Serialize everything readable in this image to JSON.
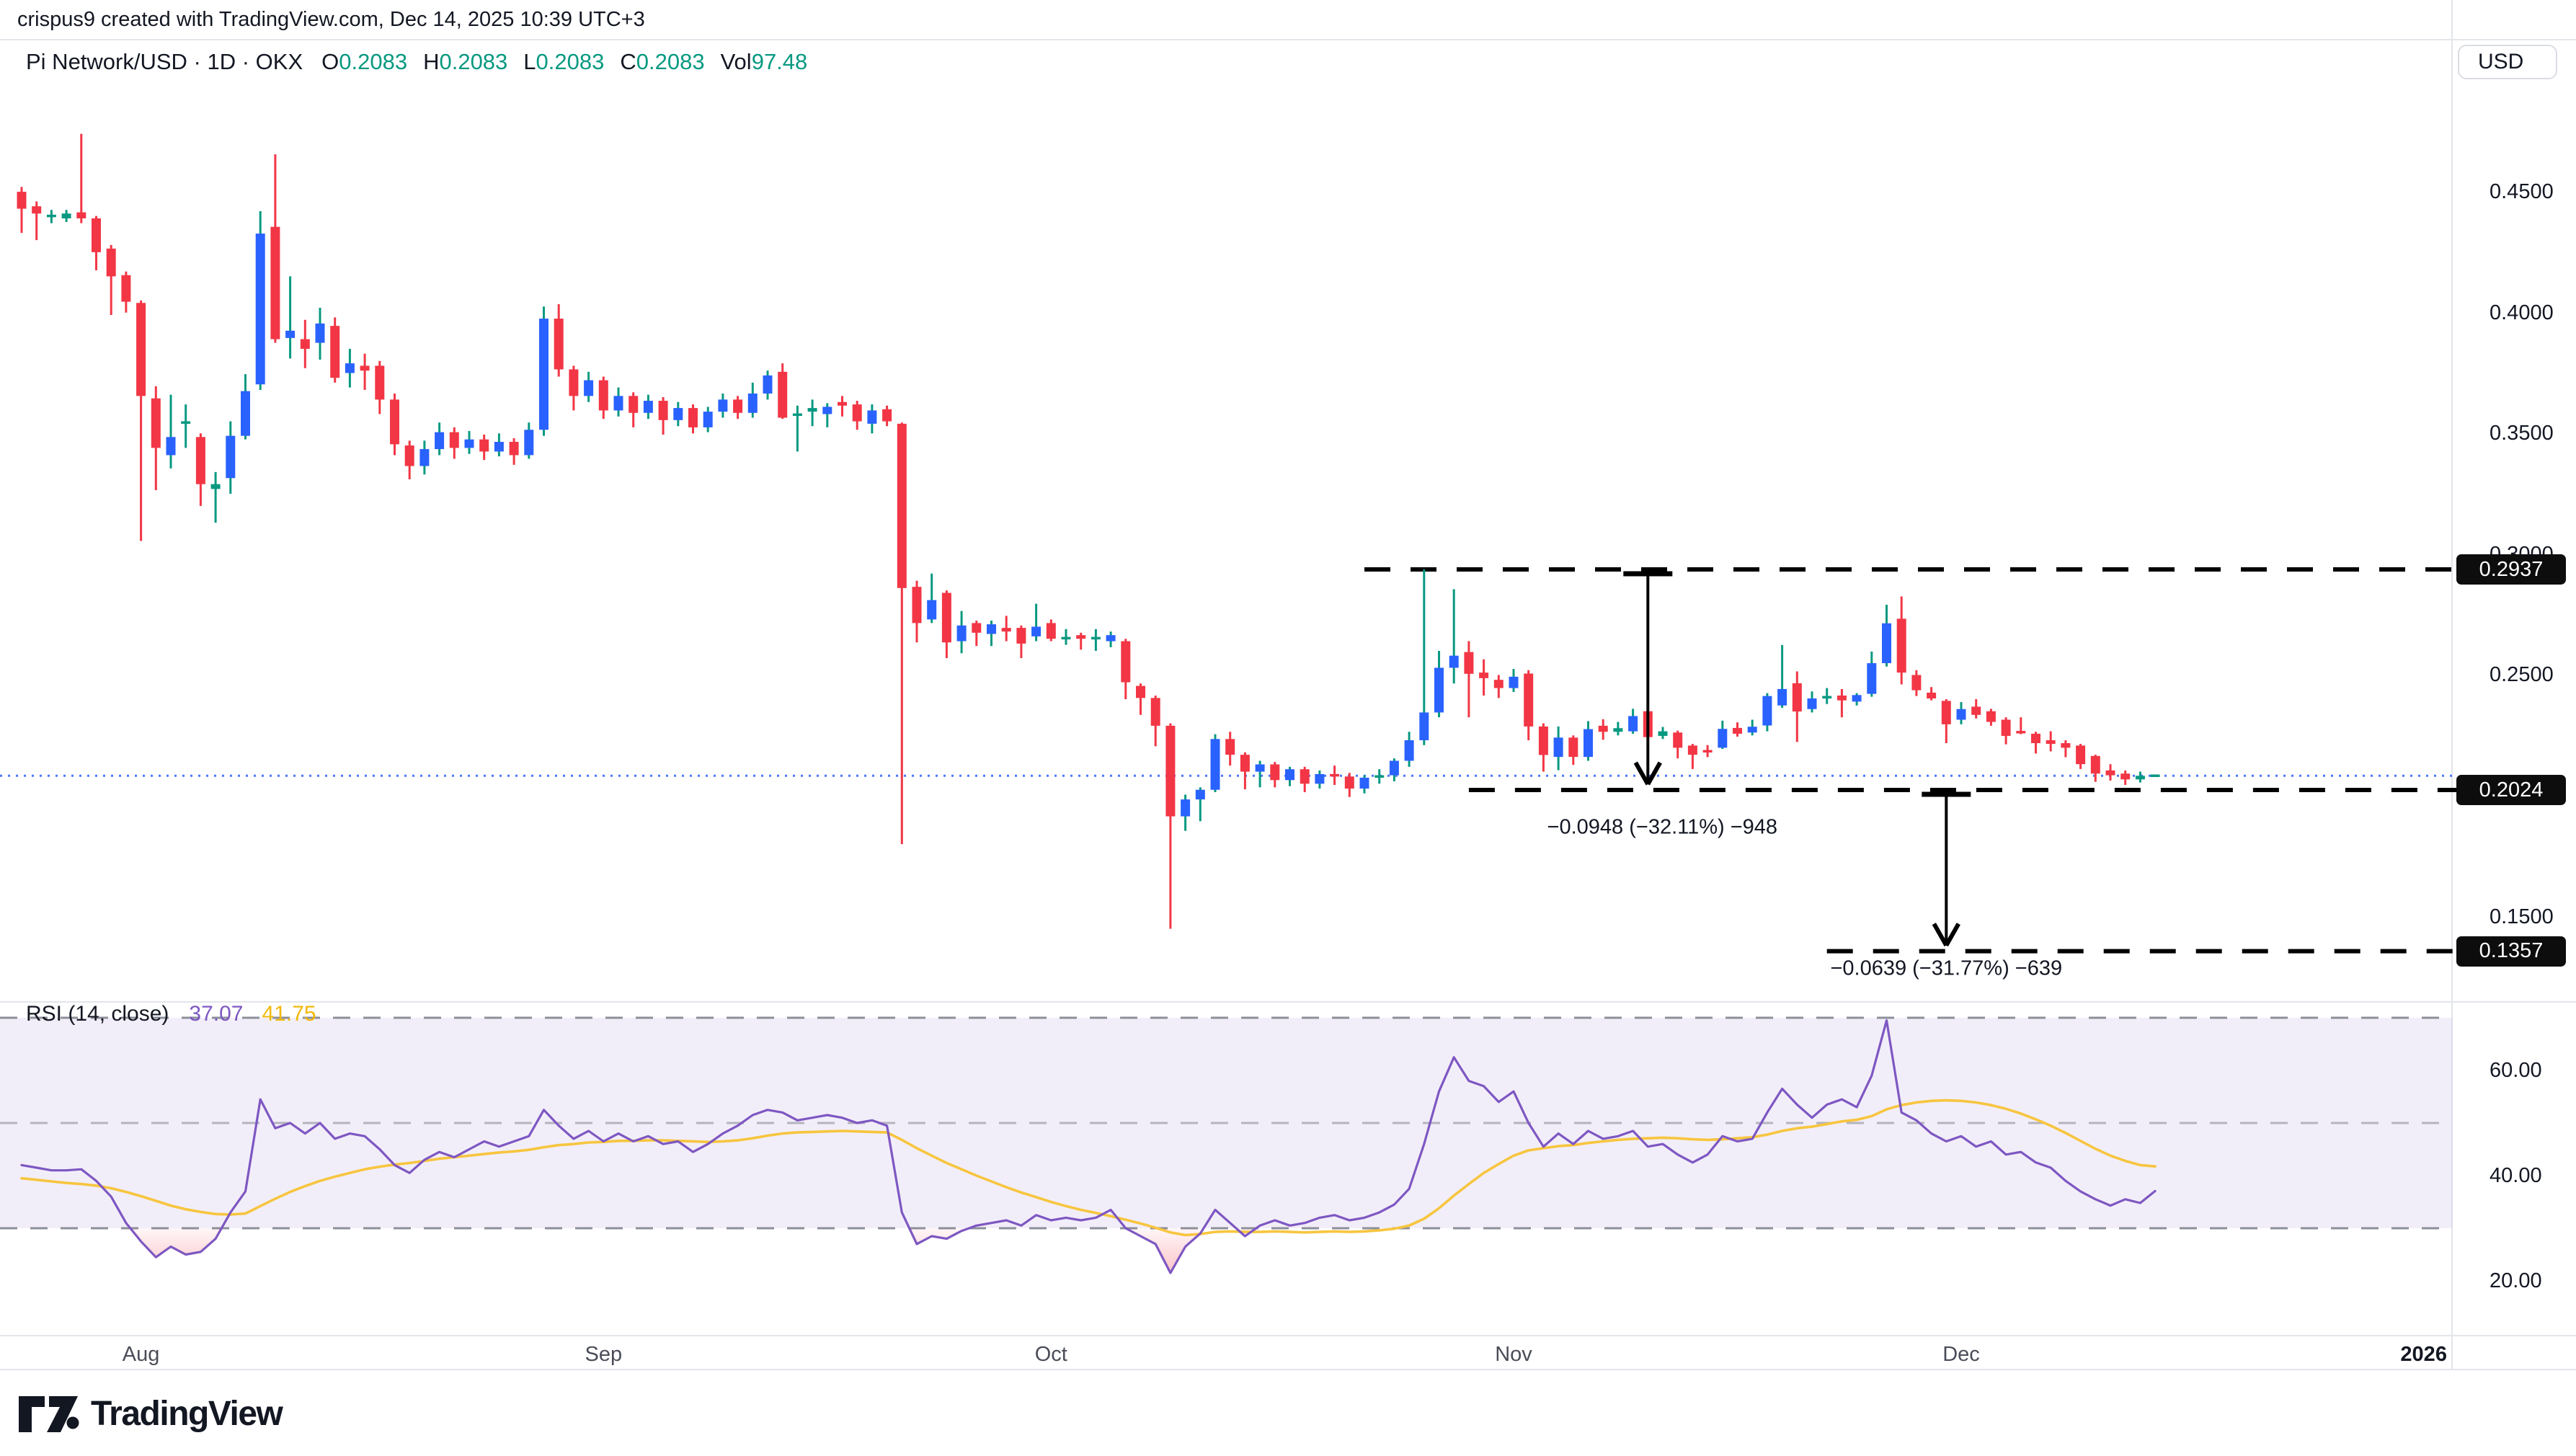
{
  "header": {
    "credit": "crispus9 created with TradingView.com, Dec 14, 2025 10:39 UTC+3"
  },
  "legend": {
    "symbol": "Pi Network/USD · 1D · OKX",
    "items": [
      {
        "label": "O",
        "value": "0.2083"
      },
      {
        "label": "H",
        "value": "0.2083"
      },
      {
        "label": "L",
        "value": "0.2083"
      },
      {
        "label": "C",
        "value": "0.2083"
      },
      {
        "label": "Vol",
        "value": "97.48"
      }
    ]
  },
  "price_axis": {
    "currency_button": "USD",
    "ticks": [
      {
        "text": "0.4500",
        "value": 0.45
      },
      {
        "text": "0.4000",
        "value": 0.4
      },
      {
        "text": "0.3500",
        "value": 0.35
      },
      {
        "text": "0.3000",
        "value": 0.3
      },
      {
        "text": "0.2500",
        "value": 0.25
      },
      {
        "text": "0.2000",
        "value": 0.2
      },
      {
        "text": "0.1500",
        "value": 0.15
      }
    ],
    "chips": [
      {
        "text": "0.2937",
        "value": 0.2937
      },
      {
        "text": "0.2024",
        "value": 0.2024
      },
      {
        "text": "0.1357",
        "value": 0.1357
      }
    ]
  },
  "rsi_axis": {
    "ticks": [
      {
        "text": "60.00",
        "value": 60
      },
      {
        "text": "40.00",
        "value": 40
      },
      {
        "text": "20.00",
        "value": 20
      }
    ]
  },
  "time_axis": {
    "ticks": [
      {
        "label": "Aug",
        "index": 8,
        "bold": false
      },
      {
        "label": "Sep",
        "index": 39,
        "bold": false
      },
      {
        "label": "Oct",
        "index": 69,
        "bold": false
      },
      {
        "label": "Nov",
        "index": 100,
        "bold": false
      },
      {
        "label": "Dec",
        "index": 130,
        "bold": false
      },
      {
        "label": "2026",
        "index": 161,
        "bold": true
      }
    ]
  },
  "rsi_legend": {
    "title": "RSI (14, close)",
    "rsi_value": "37.07",
    "ma_value": "41.75"
  },
  "annotations": {
    "measure1": "−0.0948 (−32.11%) −948",
    "measure2": "−0.0639 (−31.77%) −639"
  },
  "footer": {
    "brand": "TradingView"
  },
  "colors": {
    "up_body": "#2962FF",
    "up_wick": "#089981",
    "down": "#F23645",
    "rsi_line": "#7E57C2",
    "rsi_ma_line": "#F7C53F",
    "rsi_band": "rgba(126,87,194,0.10)",
    "level_dash": "#000000",
    "close_dotted": "#2962FF",
    "separator": "#e3e5ea",
    "teal_value": "#089981",
    "oversold_fill": "#F23645"
  },
  "chart_data": {
    "type": "candlestick",
    "symbol": "Pi Network/USD",
    "interval": "1D",
    "exchange": "OKX",
    "title": "Pi Network/USD · 1D · OKX",
    "legend_last": {
      "o": 0.2083,
      "h": 0.2083,
      "l": 0.2083,
      "c": 0.2083,
      "vol": 97.48
    },
    "price_ylim": [
      0.135,
      0.49
    ],
    "grid": false,
    "candles": [
      [
        0.45,
        0.452,
        0.433,
        0.443
      ],
      [
        0.444,
        0.446,
        0.43,
        0.441
      ],
      [
        0.4395,
        0.4425,
        0.437,
        0.4405
      ],
      [
        0.439,
        0.4425,
        0.4375,
        0.441
      ],
      [
        0.4415,
        0.474,
        0.437,
        0.439
      ],
      [
        0.439,
        0.44,
        0.4175,
        0.425
      ],
      [
        0.4265,
        0.428,
        0.399,
        0.415
      ],
      [
        0.4155,
        0.417,
        0.4,
        0.4045
      ],
      [
        0.404,
        0.405,
        0.3055,
        0.3655
      ],
      [
        0.3645,
        0.3695,
        0.3265,
        0.344
      ],
      [
        0.341,
        0.366,
        0.3355,
        0.3485
      ],
      [
        0.354,
        0.362,
        0.344,
        0.355
      ],
      [
        0.3485,
        0.35,
        0.32,
        0.329
      ],
      [
        0.327,
        0.334,
        0.313,
        0.329
      ],
      [
        0.3315,
        0.355,
        0.325,
        0.349
      ],
      [
        0.349,
        0.3745,
        0.3475,
        0.3675
      ],
      [
        0.3703,
        0.442,
        0.368,
        0.4327
      ],
      [
        0.4355,
        0.4655,
        0.3875,
        0.389
      ],
      [
        0.3895,
        0.415,
        0.381,
        0.3925
      ],
      [
        0.389,
        0.397,
        0.377,
        0.385
      ],
      [
        0.3875,
        0.402,
        0.3805,
        0.3955
      ],
      [
        0.3945,
        0.398,
        0.371,
        0.373
      ],
      [
        0.375,
        0.385,
        0.369,
        0.379
      ],
      [
        0.378,
        0.383,
        0.368,
        0.376
      ],
      [
        0.378,
        0.38,
        0.358,
        0.364
      ],
      [
        0.364,
        0.3665,
        0.341,
        0.3455
      ],
      [
        0.345,
        0.347,
        0.331,
        0.3365
      ],
      [
        0.3365,
        0.347,
        0.333,
        0.3435
      ],
      [
        0.3435,
        0.3545,
        0.341,
        0.3505
      ],
      [
        0.3505,
        0.3525,
        0.3395,
        0.344
      ],
      [
        0.344,
        0.351,
        0.3415,
        0.3475
      ],
      [
        0.3475,
        0.3495,
        0.339,
        0.3425
      ],
      [
        0.3425,
        0.35,
        0.3405,
        0.3465
      ],
      [
        0.3465,
        0.348,
        0.337,
        0.341
      ],
      [
        0.341,
        0.3545,
        0.3395,
        0.3515
      ],
      [
        0.3515,
        0.4025,
        0.349,
        0.3975
      ],
      [
        0.3975,
        0.4035,
        0.3735,
        0.3765
      ],
      [
        0.3765,
        0.378,
        0.3595,
        0.3655
      ],
      [
        0.3655,
        0.3755,
        0.363,
        0.372
      ],
      [
        0.372,
        0.3735,
        0.356,
        0.3595
      ],
      [
        0.3595,
        0.369,
        0.357,
        0.3655
      ],
      [
        0.3655,
        0.367,
        0.3525,
        0.3585
      ],
      [
        0.3585,
        0.366,
        0.356,
        0.3635
      ],
      [
        0.3635,
        0.365,
        0.3495,
        0.3555
      ],
      [
        0.3555,
        0.363,
        0.353,
        0.3605
      ],
      [
        0.3605,
        0.362,
        0.35,
        0.3525
      ],
      [
        0.3525,
        0.361,
        0.3505,
        0.359
      ],
      [
        0.359,
        0.3665,
        0.3565,
        0.364
      ],
      [
        0.364,
        0.3655,
        0.356,
        0.3585
      ],
      [
        0.3585,
        0.371,
        0.3565,
        0.3665
      ],
      [
        0.3665,
        0.376,
        0.364,
        0.374
      ],
      [
        0.3755,
        0.379,
        0.356,
        0.3565
      ],
      [
        0.3575,
        0.3615,
        0.3425,
        0.358
      ],
      [
        0.359,
        0.364,
        0.353,
        0.3605
      ],
      [
        0.358,
        0.3625,
        0.3525,
        0.361
      ],
      [
        0.363,
        0.3655,
        0.357,
        0.3615
      ],
      [
        0.362,
        0.3635,
        0.3515,
        0.355
      ],
      [
        0.354,
        0.362,
        0.35,
        0.3595
      ],
      [
        0.36,
        0.3615,
        0.353,
        0.355
      ],
      [
        0.354,
        0.3545,
        0.18,
        0.286
      ],
      [
        0.2865,
        0.289,
        0.2635,
        0.2715
      ],
      [
        0.273,
        0.292,
        0.2715,
        0.281
      ],
      [
        0.284,
        0.285,
        0.257,
        0.2635
      ],
      [
        0.264,
        0.2765,
        0.259,
        0.2705
      ],
      [
        0.2715,
        0.2725,
        0.262,
        0.2675
      ],
      [
        0.267,
        0.2725,
        0.262,
        0.271
      ],
      [
        0.2695,
        0.2745,
        0.264,
        0.268
      ],
      [
        0.2695,
        0.2705,
        0.257,
        0.263
      ],
      [
        0.266,
        0.2795,
        0.264,
        0.27
      ],
      [
        0.2715,
        0.273,
        0.264,
        0.265
      ],
      [
        0.265,
        0.269,
        0.2625,
        0.2655
      ],
      [
        0.2665,
        0.2675,
        0.2605,
        0.265
      ],
      [
        0.265,
        0.269,
        0.26,
        0.2655
      ],
      [
        0.264,
        0.268,
        0.2615,
        0.2665
      ],
      [
        0.264,
        0.265,
        0.24,
        0.247
      ],
      [
        0.2455,
        0.2465,
        0.2335,
        0.2405
      ],
      [
        0.2405,
        0.2415,
        0.2205,
        0.229
      ],
      [
        0.229,
        0.23,
        0.145,
        0.1915
      ],
      [
        0.1915,
        0.2005,
        0.1855,
        0.1985
      ],
      [
        0.1985,
        0.2035,
        0.1895,
        0.2025
      ],
      [
        0.2025,
        0.2255,
        0.2015,
        0.2235
      ],
      [
        0.2235,
        0.2265,
        0.2125,
        0.217
      ],
      [
        0.217,
        0.218,
        0.2027,
        0.21
      ],
      [
        0.21,
        0.2145,
        0.2035,
        0.213
      ],
      [
        0.213,
        0.214,
        0.2035,
        0.2065
      ],
      [
        0.2065,
        0.212,
        0.204,
        0.211
      ],
      [
        0.211,
        0.212,
        0.2015,
        0.205
      ],
      [
        0.205,
        0.2105,
        0.203,
        0.209
      ],
      [
        0.209,
        0.2125,
        0.2045,
        0.208
      ],
      [
        0.208,
        0.2095,
        0.1995,
        0.203
      ],
      [
        0.203,
        0.2085,
        0.201,
        0.2075
      ],
      [
        0.2075,
        0.211,
        0.205,
        0.2085
      ],
      [
        0.2085,
        0.2155,
        0.206,
        0.2145
      ],
      [
        0.2145,
        0.2265,
        0.212,
        0.223
      ],
      [
        0.223,
        0.2937,
        0.221,
        0.2345
      ],
      [
        0.2345,
        0.26,
        0.2325,
        0.253
      ],
      [
        0.253,
        0.2855,
        0.2465,
        0.258
      ],
      [
        0.2595,
        0.264,
        0.2325,
        0.2505
      ],
      [
        0.251,
        0.2565,
        0.2415,
        0.2487
      ],
      [
        0.248,
        0.25,
        0.2405,
        0.2446
      ],
      [
        0.2446,
        0.2525,
        0.243,
        0.2493
      ],
      [
        0.2506,
        0.252,
        0.223,
        0.2287
      ],
      [
        0.2287,
        0.23,
        0.21,
        0.2169
      ],
      [
        0.2161,
        0.2287,
        0.2106,
        0.2241
      ],
      [
        0.2241,
        0.225,
        0.2128,
        0.2161
      ],
      [
        0.2161,
        0.2309,
        0.2145,
        0.2276
      ],
      [
        0.229,
        0.2317,
        0.2232,
        0.2265
      ],
      [
        0.2265,
        0.2306,
        0.225,
        0.228
      ],
      [
        0.2267,
        0.236,
        0.2257,
        0.233
      ],
      [
        0.235,
        0.2369,
        0.2223,
        0.2243
      ],
      [
        0.2248,
        0.2285,
        0.2235,
        0.2267
      ],
      [
        0.2262,
        0.227,
        0.2155,
        0.2199
      ],
      [
        0.2208,
        0.2215,
        0.2111,
        0.217
      ],
      [
        0.2189,
        0.221,
        0.216,
        0.218
      ],
      [
        0.2199,
        0.2311,
        0.2194,
        0.2277
      ],
      [
        0.2281,
        0.2304,
        0.2245,
        0.2257
      ],
      [
        0.2262,
        0.2315,
        0.225,
        0.2286
      ],
      [
        0.2291,
        0.2425,
        0.2267,
        0.2413
      ],
      [
        0.2374,
        0.2624,
        0.2364,
        0.2442
      ],
      [
        0.2466,
        0.2515,
        0.2223,
        0.2349
      ],
      [
        0.2359,
        0.2432,
        0.2345,
        0.2403
      ],
      [
        0.2403,
        0.2446,
        0.238,
        0.2413
      ],
      [
        0.2415,
        0.2442,
        0.2325,
        0.2395
      ],
      [
        0.239,
        0.2425,
        0.2374,
        0.2417
      ],
      [
        0.2422,
        0.2597,
        0.241,
        0.2549
      ],
      [
        0.2549,
        0.2791,
        0.2535,
        0.2714
      ],
      [
        0.2733,
        0.2825,
        0.2461,
        0.251
      ],
      [
        0.25,
        0.252,
        0.2413,
        0.2437
      ],
      [
        0.2427,
        0.245,
        0.2395,
        0.2403
      ],
      [
        0.2393,
        0.24,
        0.2218,
        0.2296
      ],
      [
        0.2315,
        0.2388,
        0.2296,
        0.2359
      ],
      [
        0.2369,
        0.24,
        0.232,
        0.2335
      ],
      [
        0.235,
        0.236,
        0.229,
        0.2306
      ],
      [
        0.2315,
        0.2325,
        0.2213,
        0.2248
      ],
      [
        0.2267,
        0.2325,
        0.2255,
        0.226
      ],
      [
        0.2257,
        0.2265,
        0.2175,
        0.2218
      ],
      [
        0.223,
        0.2267,
        0.2184,
        0.2215
      ],
      [
        0.2218,
        0.223,
        0.216,
        0.2199
      ],
      [
        0.2208,
        0.2215,
        0.2111,
        0.2131
      ],
      [
        0.2165,
        0.217,
        0.2058,
        0.2092
      ],
      [
        0.2105,
        0.2131,
        0.2063,
        0.2085
      ],
      [
        0.2092,
        0.2105,
        0.2045,
        0.2068
      ],
      [
        0.2068,
        0.21,
        0.2055,
        0.2083
      ],
      [
        0.2083,
        0.2083,
        0.2083,
        0.2083
      ]
    ],
    "levels": {
      "resistance": 0.2937,
      "support": 0.2024,
      "downside_target": 0.1357,
      "last_close": 0.2083
    },
    "level_lines": [
      {
        "value": 0.2937,
        "from_index": 90
      },
      {
        "value": 0.2024,
        "from_index": 97
      },
      {
        "value": 0.1357,
        "from_index": 121
      }
    ],
    "measures": [
      {
        "text": "−0.0948 (−32.11%) −948",
        "from": 0.2937,
        "to": 0.2024,
        "at_index": 109,
        "label_y_offset": 52
      },
      {
        "text": "−0.0639 (−31.77%) −639",
        "from": 0.2024,
        "to": 0.1357,
        "at_index": 129,
        "label_y_offset": 24
      }
    ],
    "rsi": {
      "type": "line",
      "period": "14, close",
      "last": 37.07,
      "ma_last": 41.75,
      "levels": [
        70,
        50,
        30
      ],
      "ylim": [
        12,
        78
      ],
      "values": [
        42,
        41.5,
        41,
        41,
        41.2,
        39,
        36,
        31,
        27.5,
        24.5,
        26.5,
        25,
        25.5,
        28,
        33,
        37,
        54.5,
        49,
        50,
        48,
        50,
        47,
        48,
        47.5,
        45,
        42,
        40.5,
        43,
        44.5,
        43.5,
        45,
        46.5,
        45.5,
        46.5,
        47.5,
        52.5,
        49.5,
        47,
        48.5,
        46.5,
        48,
        46.5,
        47.5,
        46,
        46.5,
        44.5,
        46,
        48,
        49.5,
        51.5,
        52.5,
        52,
        50.5,
        51,
        51.5,
        51,
        50,
        50.5,
        49.5,
        33,
        27,
        28.5,
        28,
        29.5,
        30.5,
        31,
        31.5,
        30.5,
        32.5,
        31.5,
        32,
        31.5,
        32,
        33.5,
        30,
        28.5,
        27,
        21.5,
        26.5,
        29,
        33.5,
        31,
        28.5,
        30.5,
        31.5,
        30.5,
        31,
        32,
        32.5,
        31.5,
        32,
        33,
        34.5,
        37.5,
        46,
        56,
        62.5,
        58,
        57,
        54,
        56,
        50,
        45.5,
        48,
        46,
        48.5,
        47,
        47.5,
        48.5,
        45.5,
        46,
        44,
        42.5,
        44,
        47.5,
        46.5,
        47,
        52,
        56.5,
        53.5,
        51,
        53.5,
        54.5,
        53,
        59,
        69.5,
        52,
        50.5,
        48,
        46.5,
        47.5,
        45.5,
        46.5,
        44,
        44.5,
        42.5,
        41.5,
        39,
        37,
        35.5,
        34.3,
        35.5,
        34.8,
        37.07
      ],
      "ma_values": [
        39.5,
        39.2,
        38.9,
        38.6,
        38.4,
        38.1,
        37.6,
        36.9,
        36.1,
        35.2,
        34.3,
        33.6,
        33.1,
        32.7,
        32.6,
        32.8,
        34.2,
        35.6,
        36.9,
        38,
        39,
        39.8,
        40.5,
        41.2,
        41.7,
        42.1,
        42.4,
        42.8,
        43.2,
        43.5,
        43.8,
        44.1,
        44.4,
        44.6,
        44.9,
        45.4,
        45.8,
        46,
        46.3,
        46.4,
        46.6,
        46.6,
        46.7,
        46.7,
        46.6,
        46.5,
        46.4,
        46.5,
        46.7,
        47.1,
        47.6,
        48,
        48.2,
        48.3,
        48.4,
        48.5,
        48.4,
        48.3,
        48.2,
        46.8,
        45.2,
        43.8,
        42.4,
        41.2,
        40,
        38.9,
        37.8,
        36.8,
        35.9,
        35,
        34.2,
        33.5,
        32.9,
        32.3,
        31.6,
        30.9,
        30.1,
        29.2,
        28.7,
        28.9,
        29.3,
        29.4,
        29.3,
        29.3,
        29.4,
        29.3,
        29.2,
        29.3,
        29.4,
        29.3,
        29.4,
        29.6,
        29.9,
        30.5,
        31.8,
        33.8,
        36.2,
        38.4,
        40.5,
        42.2,
        43.8,
        44.8,
        45.2,
        45.6,
        45.8,
        46.2,
        46.5,
        46.8,
        47,
        47.1,
        47.2,
        47.1,
        46.9,
        46.8,
        46.9,
        47.1,
        47.3,
        47.8,
        48.5,
        49,
        49.3,
        49.8,
        50.3,
        50.6,
        51.3,
        52.6,
        53.4,
        53.9,
        54.2,
        54.3,
        54.2,
        53.9,
        53.4,
        52.7,
        51.8,
        50.7,
        49.5,
        48.1,
        46.6,
        45.1,
        43.8,
        42.8,
        42,
        41.75
      ]
    }
  }
}
